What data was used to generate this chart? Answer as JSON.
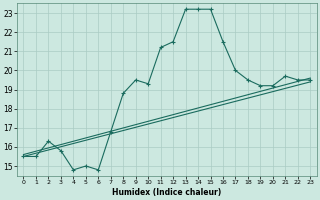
{
  "xlabel": "Humidex (Indice chaleur)",
  "bg_color": "#cce8e0",
  "grid_color": "#aaccC4",
  "line_color": "#1a6b5e",
  "xlim": [
    -0.5,
    23.5
  ],
  "ylim": [
    14.5,
    23.5
  ],
  "xticks": [
    0,
    1,
    2,
    3,
    4,
    5,
    6,
    7,
    8,
    9,
    10,
    11,
    12,
    13,
    14,
    15,
    16,
    17,
    18,
    19,
    20,
    21,
    22,
    23
  ],
  "yticks": [
    15,
    16,
    17,
    18,
    19,
    20,
    21,
    22,
    23
  ],
  "line1_x": [
    0,
    1,
    2,
    3,
    4,
    5,
    6,
    7,
    8,
    9,
    10,
    11,
    12,
    13,
    14,
    15,
    16,
    17,
    18,
    19,
    20,
    21,
    22,
    23
  ],
  "line1_y": [
    15.5,
    15.5,
    16.3,
    15.8,
    14.8,
    15.0,
    14.8,
    16.8,
    18.8,
    19.5,
    19.3,
    21.2,
    21.5,
    23.2,
    23.2,
    23.2,
    21.5,
    20.0,
    19.5,
    19.2,
    19.2,
    19.7,
    19.5,
    19.5
  ],
  "line2_x": [
    0,
    23
  ],
  "line2_y": [
    15.5,
    19.4
  ],
  "line3_x": [
    0,
    23
  ],
  "line3_y": [
    15.6,
    19.6
  ]
}
